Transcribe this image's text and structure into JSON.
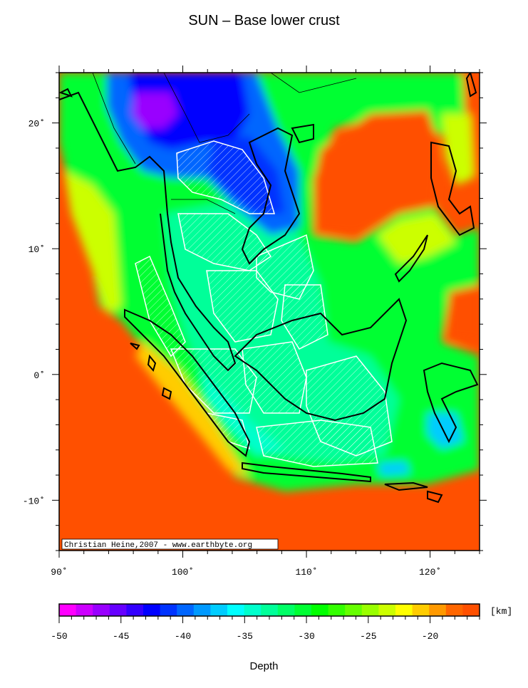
{
  "title": "SUN – Base lower crust",
  "credit": "Christian Heine,2007 - www.earthbyte.org",
  "map": {
    "lon_range": [
      90,
      124
    ],
    "lat_range": [
      -14,
      24
    ],
    "lon_ticks": [
      90,
      100,
      110,
      120
    ],
    "lat_ticks": [
      20,
      10,
      0,
      -10
    ],
    "lon_tick_labels": [
      "90˚",
      "100˚",
      "110˚",
      "120˚"
    ],
    "lat_tick_labels": [
      "20˚",
      "10˚",
      "0˚",
      "-10˚"
    ],
    "background_color": "#ff5000"
  },
  "colorbar": {
    "unit": "[km]",
    "label": "Depth",
    "range": [
      -50,
      -16
    ],
    "tick_values": [
      -50,
      -45,
      -40,
      -35,
      -30,
      -25,
      -20
    ],
    "tick_labels": [
      "-50",
      "-45",
      "-40",
      "-35",
      "-30",
      "-25",
      "-20"
    ],
    "colors": [
      "#ff00ff",
      "#cc00ff",
      "#9900ff",
      "#6600ff",
      "#3300ff",
      "#0000ff",
      "#0033ff",
      "#0066ff",
      "#0099ff",
      "#00ccff",
      "#00ffff",
      "#00ffcc",
      "#00ff99",
      "#00ff66",
      "#00ff33",
      "#00ff00",
      "#33ff00",
      "#66ff00",
      "#99ff00",
      "#ccff00",
      "#ffff00",
      "#ffcc00",
      "#ff9900",
      "#ff6600",
      "#ff5000"
    ]
  }
}
